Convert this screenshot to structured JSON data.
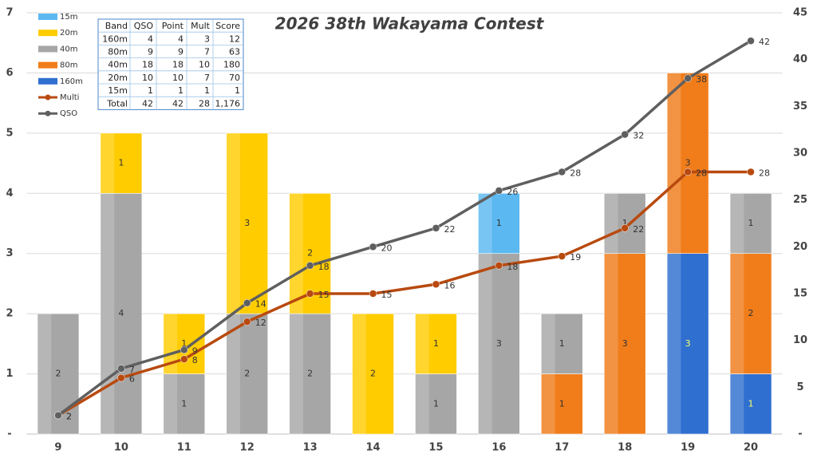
{
  "chart_data": {
    "type": "bar",
    "stacked": true,
    "title": "2026 38th Wakayama Contest",
    "categories": [
      "9",
      "10",
      "11",
      "12",
      "13",
      "14",
      "15",
      "16",
      "17",
      "18",
      "19",
      "20"
    ],
    "series": [
      {
        "name": "160m",
        "color": "#2f6fd0",
        "values": [
          null,
          null,
          null,
          null,
          null,
          null,
          null,
          null,
          null,
          null,
          3,
          1
        ]
      },
      {
        "name": "80m",
        "color": "#f07c1a",
        "values": [
          null,
          null,
          null,
          null,
          null,
          null,
          null,
          null,
          1,
          3,
          3,
          2
        ]
      },
      {
        "name": "40m",
        "color": "#a6a6a6",
        "values": [
          2,
          4,
          1,
          2,
          2,
          null,
          1,
          3,
          1,
          1,
          null,
          1
        ]
      },
      {
        "name": "20m",
        "color": "#ffcc00",
        "values": [
          null,
          1,
          1,
          3,
          2,
          2,
          1,
          null,
          null,
          null,
          null,
          null
        ]
      },
      {
        "name": "15m",
        "color": "#5bb8f0",
        "values": [
          null,
          null,
          null,
          null,
          null,
          null,
          null,
          1,
          null,
          null,
          null,
          null
        ]
      },
      {
        "name": "Multi",
        "type": "line",
        "axis": "y2",
        "color": "#b84a10",
        "values": [
          2,
          6,
          8,
          12,
          15,
          15,
          16,
          18,
          19,
          22,
          28,
          28
        ]
      },
      {
        "name": "QSO",
        "type": "line",
        "axis": "y2",
        "color": "#5f5f5f",
        "values": [
          2,
          7,
          9,
          14,
          18,
          20,
          22,
          26,
          28,
          32,
          38,
          42
        ]
      }
    ],
    "ylim": [
      0,
      7
    ],
    "yticks": [
      {
        "value": 0,
        "label": "-"
      },
      1,
      2,
      3,
      4,
      5,
      6,
      7
    ],
    "y2lim": [
      0,
      45
    ],
    "y2ticks": [
      {
        "value": 0,
        "label": "-"
      },
      5,
      10,
      15,
      20,
      25,
      30,
      35,
      40,
      45
    ],
    "grid": true,
    "legend": "top-left",
    "table": {
      "header": [
        "Band",
        "QSO",
        "Point",
        "Mult",
        "Score"
      ],
      "rows": [
        [
          "160m",
          "4",
          "4",
          "3",
          "12"
        ],
        [
          "80m",
          "9",
          "9",
          "7",
          "63"
        ],
        [
          "40m",
          "18",
          "18",
          "10",
          "180"
        ],
        [
          "20m",
          "10",
          "10",
          "7",
          "70"
        ],
        [
          "15m",
          "1",
          "1",
          "1",
          "1"
        ],
        [
          "Total",
          "42",
          "42",
          "28",
          "1,176"
        ]
      ]
    }
  }
}
